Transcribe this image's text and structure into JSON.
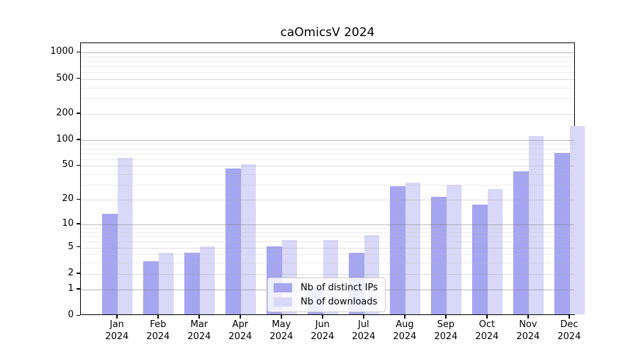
{
  "chart_data": {
    "type": "bar",
    "title": "caOmicsV 2024",
    "categories": [
      "Jan 2024",
      "Feb 2024",
      "Mar 2024",
      "Apr 2024",
      "May 2024",
      "Jun 2024",
      "Jul 2024",
      "Aug 2024",
      "Sep 2024",
      "Oct 2024",
      "Nov 2024",
      "Dec 2024"
    ],
    "series": [
      {
        "name": "Nb of distinct IPs",
        "color": "#a5a5f0",
        "values": [
          13,
          3,
          4,
          45,
          5,
          1,
          4,
          28,
          21,
          17,
          42,
          68
        ]
      },
      {
        "name": "Nb of downloads",
        "color": "#d8d8f8",
        "values": [
          60,
          4,
          5,
          50,
          6,
          6,
          7,
          31,
          29,
          26,
          107,
          140
        ]
      }
    ],
    "xlabel": "",
    "ylabel": "",
    "y_scale": "log10(value+1)",
    "y_ticks": [
      0,
      1,
      2,
      5,
      10,
      20,
      50,
      100,
      200,
      500,
      1000
    ],
    "y_decade_ticks": [
      1,
      10,
      100,
      1000
    ],
    "y_minor_gridlines": [
      3,
      4,
      6,
      7,
      8,
      9,
      30,
      40,
      60,
      70,
      80,
      90,
      300,
      400,
      600,
      700,
      800,
      900
    ],
    "ylim": [
      0,
      1280
    ],
    "grid": true,
    "legend_position": "inside lower center",
    "colors": {
      "decade_gridline": "rgba(130,130,130,0.55)",
      "major_gridline": "rgba(170,170,170,0.40)",
      "minor_gridline": "rgba(190,190,190,0.30)",
      "axis": "#000000"
    }
  }
}
